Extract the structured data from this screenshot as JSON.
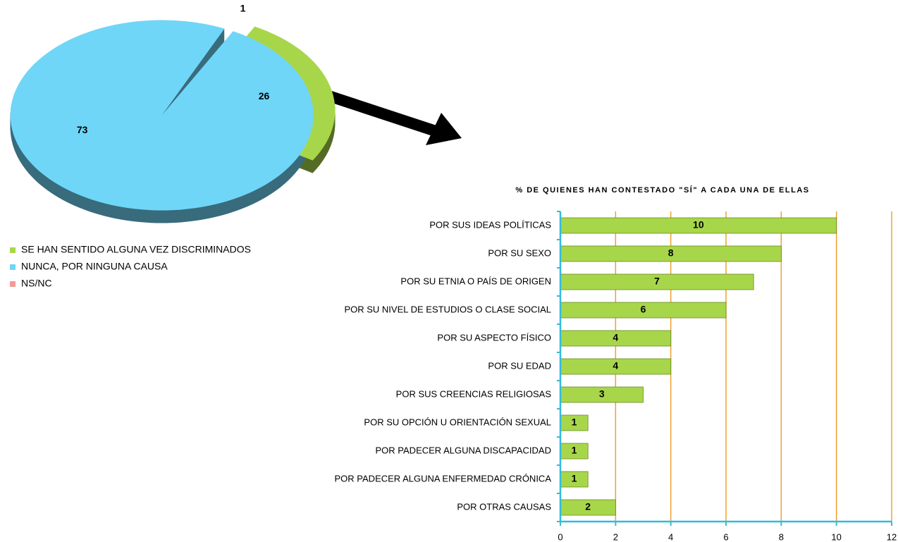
{
  "chart_data": [
    {
      "type": "pie",
      "categories": [
        "SE HAN SENTIDO ALGUNA VEZ DISCRIMINADOS",
        "NUNCA, POR NINGUNA CAUSA",
        "NS/NC"
      ],
      "values": [
        26,
        73,
        1
      ],
      "colors": [
        "#a8d64a",
        "#6fd6f8",
        "#f29a9a"
      ]
    },
    {
      "type": "bar",
      "title": "% DE QUIENES HAN CONTESTADO \"SÍ\" A CADA UNA DE ELLAS",
      "categories": [
        "POR SUS IDEAS POLÍTICAS",
        "POR SU SEXO",
        "POR SU ETNIA O PAÍS DE ORIGEN",
        "POR SU NIVEL DE ESTUDIOS O CLASE SOCIAL",
        "POR SU ASPECTO FÍSICO",
        "POR SU EDAD",
        "POR SUS CREENCIAS RELIGIOSAS",
        "POR SU OPCIÓN U ORIENTACIÓN SEXUAL",
        "POR PADECER ALGUNA DISCAPACIDAD",
        "POR PADECER ALGUNA ENFERMEDAD CRÓNICA",
        "POR OTRAS CAUSAS"
      ],
      "values": [
        10,
        8,
        7,
        6,
        4,
        4,
        3,
        1,
        1,
        1,
        2
      ],
      "color": "#a8d64a",
      "xlim": [
        0,
        12
      ],
      "xticks": [
        0,
        2,
        4,
        6,
        8,
        10,
        12
      ],
      "grid": true
    }
  ]
}
